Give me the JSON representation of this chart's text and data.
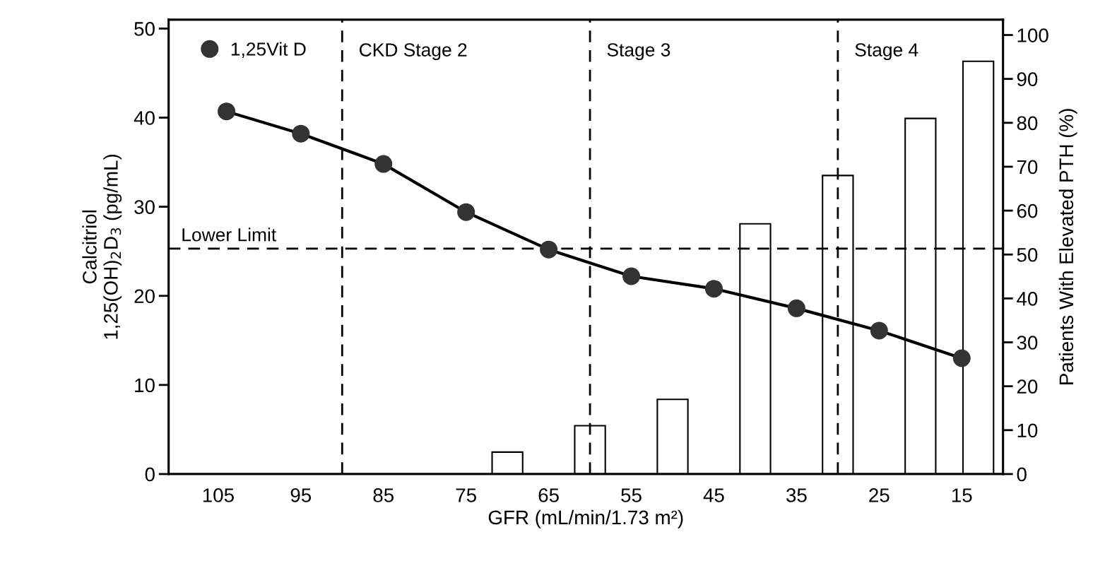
{
  "chart_data": {
    "type": "line",
    "xlabel": "GFR (mL/min/1.73 m²)",
    "ylabel": "Calcitriol\n1,25(OH)$_{2}$D$_{3}$ (pg/mL)",
    "y2label": "Patients With Elevated PTH (%)",
    "xlim": [
      111,
      10
    ],
    "xticks": [
      105,
      95,
      85,
      75,
      65,
      55,
      45,
      35,
      25,
      15
    ],
    "ylim": [
      0,
      51
    ],
    "yticks": [
      0,
      10,
      20,
      30,
      40,
      50
    ],
    "y2lim": [
      0,
      103.5
    ],
    "y2ticks": [
      0,
      10,
      20,
      30,
      40,
      50,
      60,
      70,
      80,
      90,
      100
    ],
    "series": [
      {
        "type": "bar",
        "axis": "y2",
        "color": "#ffffff",
        "x": [
          70,
          60,
          50,
          40,
          30,
          20,
          13
        ],
        "values": [
          5,
          11,
          17,
          57,
          68,
          81,
          94
        ]
      },
      {
        "name": "1,25Vit D",
        "color": "#333333",
        "x": [
          104,
          95,
          85,
          75,
          65,
          55,
          45,
          35,
          25,
          15
        ],
        "values": [
          40.7,
          38.2,
          34.8,
          29.4,
          25.2,
          22.2,
          20.8,
          18.6,
          16.1,
          13.0
        ]
      }
    ],
    "ref_lines": [
      {
        "axis": "y",
        "value": 25.3,
        "label": "Lower Limit",
        "line_style": "dashed"
      },
      {
        "axis": "x",
        "value": 90,
        "label": "CKD Stage 2",
        "line_style": "dashed"
      },
      {
        "axis": "x",
        "value": 60,
        "label": "Stage 3",
        "line_style": "dashed"
      },
      {
        "axis": "x",
        "value": 30,
        "label": "Stage 4",
        "line_style": "dashed"
      }
    ],
    "marker": "circle",
    "line_style": "solid",
    "grid": false,
    "legend": "top left"
  }
}
